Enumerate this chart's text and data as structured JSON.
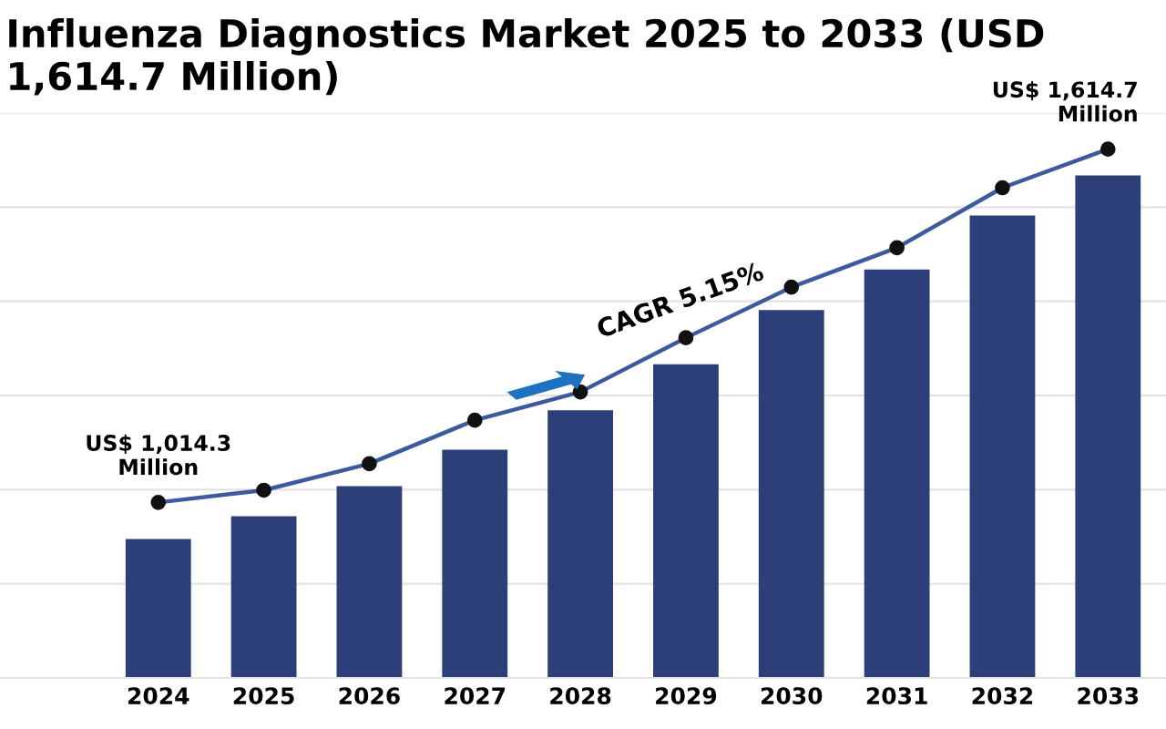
{
  "chart_data": {
    "type": "bar",
    "title": "Influenza Diagnostics Market 2025 to 2033 (USD 1,614.7 Million)",
    "categories": [
      "2024",
      "2025",
      "2026",
      "2027",
      "2028",
      "2029",
      "2030",
      "2031",
      "2032",
      "2033"
    ],
    "series": [
      {
        "color": "#2c3f78",
        "values": [
          952,
          991,
          1042,
          1104,
          1171,
          1249,
          1341,
          1410,
          1502,
          1570
        ]
      },
      {
        "type": "line",
        "color": "#3d5a9e",
        "marker": "circle",
        "values": [
          1014.3,
          1035,
          1080,
          1154,
          1202,
          1294,
          1380,
          1447,
          1549,
          1614.7
        ],
        "value_labels": [
          "US$ 1,014.3\nMillion",
          null,
          null,
          null,
          null,
          null,
          null,
          null,
          null,
          "US$ 1,614.7\nMillion"
        ]
      }
    ],
    "annotations": [
      "CAGR 5.15%"
    ],
    "ylim": [
      716,
      1676
    ],
    "yticks": [
      {
        "value": 716,
        "label": null
      },
      {
        "value": 876,
        "label": null
      },
      {
        "value": 1036,
        "label": null
      },
      {
        "value": 1196,
        "label": null
      },
      {
        "value": 1356,
        "label": null
      },
      {
        "value": 1516,
        "label": null
      },
      {
        "value": 1676,
        "label": null
      }
    ],
    "grid": "y",
    "tick_labels": "x",
    "legend": false
  }
}
